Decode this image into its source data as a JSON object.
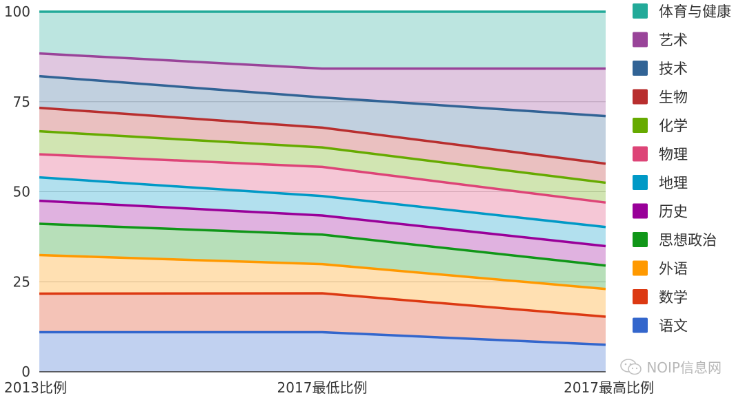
{
  "chart_data": {
    "type": "area",
    "stacked": true,
    "categories": [
      "2013比例",
      "2017最低比例",
      "2017最高比例"
    ],
    "ylim": [
      0,
      100
    ],
    "yticks": [
      0,
      25,
      50,
      75,
      100
    ],
    "grid": true,
    "legend_position": "right",
    "series": [
      {
        "name": "语文",
        "color": "#3366cc",
        "values": [
          11,
          11,
          7.5
        ]
      },
      {
        "name": "数学",
        "color": "#dc3912",
        "values": [
          10.7,
          10.8,
          7.8
        ]
      },
      {
        "name": "外语",
        "color": "#ff9900",
        "values": [
          10.7,
          8.1,
          7.7
        ]
      },
      {
        "name": "思想政治",
        "color": "#109618",
        "values": [
          8.7,
          8.2,
          6.5
        ]
      },
      {
        "name": "历史",
        "color": "#990099",
        "values": [
          6.4,
          5.3,
          5.4
        ]
      },
      {
        "name": "地理",
        "color": "#0099c6",
        "values": [
          6.5,
          5.4,
          5.3
        ]
      },
      {
        "name": "物理",
        "color": "#dd4477",
        "values": [
          6.4,
          8.1,
          6.8
        ]
      },
      {
        "name": "化学",
        "color": "#66aa00",
        "values": [
          6.4,
          5.4,
          5.5
        ]
      },
      {
        "name": "生物",
        "color": "#b82e2e",
        "values": [
          6.5,
          5.5,
          5.3
        ]
      },
      {
        "name": "技术",
        "color": "#316395",
        "values": [
          8.8,
          8.4,
          13.2
        ]
      },
      {
        "name": "艺术",
        "color": "#994499",
        "values": [
          6.3,
          8.0,
          13.2
        ]
      },
      {
        "name": "体育与健康",
        "color": "#22aa99",
        "values": [
          11.6,
          15.8,
          15.8
        ]
      }
    ]
  },
  "watermark": {
    "text": "NOIP信息网",
    "icon": "wechat-icon"
  }
}
